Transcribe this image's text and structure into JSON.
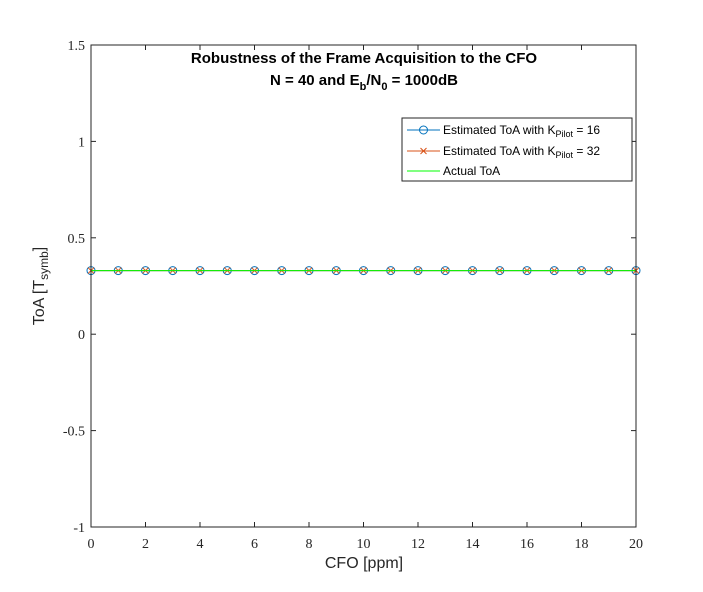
{
  "chart_data": {
    "type": "line",
    "title_line1": "Robustness of the Frame Acquisition to the CFO",
    "title_line2": {
      "prefix": "N = 40 and E",
      "sub1": "b",
      "mid": "/N",
      "sub2": "0",
      "suffix": " = 1000dB"
    },
    "xlabel": "CFO [ppm]",
    "ylabel": {
      "prefix": "ToA [T",
      "sub": "symb",
      "suffix": "]"
    },
    "xlim": [
      0,
      20
    ],
    "ylim": [
      -1,
      1.5
    ],
    "xticks": [
      0,
      2,
      4,
      6,
      8,
      10,
      12,
      14,
      16,
      18,
      20
    ],
    "xtick_labels": [
      "0",
      "2",
      "4",
      "6",
      "8",
      "10",
      "12",
      "14",
      "16",
      "18",
      "20"
    ],
    "yticks": [
      -1,
      -0.5,
      0,
      0.5,
      1,
      1.5
    ],
    "ytick_labels": [
      "-1",
      "-0.5",
      "0",
      "0.5",
      "1",
      "1.5"
    ],
    "grid": false,
    "legend_position": "top-right",
    "x": [
      0,
      1,
      2,
      3,
      4,
      5,
      6,
      7,
      8,
      9,
      10,
      11,
      12,
      13,
      14,
      15,
      16,
      17,
      18,
      19,
      20
    ],
    "series": [
      {
        "name": {
          "prefix": "Estimated ToA with K",
          "sub": "Pilot",
          "suffix": " = 16"
        },
        "color": "#0072BD",
        "marker": "circle",
        "values": [
          0.33,
          0.33,
          0.33,
          0.33,
          0.33,
          0.33,
          0.33,
          0.33,
          0.33,
          0.33,
          0.33,
          0.33,
          0.33,
          0.33,
          0.33,
          0.33,
          0.33,
          0.33,
          0.33,
          0.33,
          0.33
        ]
      },
      {
        "name": {
          "prefix": "Estimated ToA with K",
          "sub": "Pilot",
          "suffix": " = 32"
        },
        "color": "#D95319",
        "marker": "x",
        "values": [
          0.33,
          0.33,
          0.33,
          0.33,
          0.33,
          0.33,
          0.33,
          0.33,
          0.33,
          0.33,
          0.33,
          0.33,
          0.33,
          0.33,
          0.33,
          0.33,
          0.33,
          0.33,
          0.33,
          0.33,
          0.33
        ]
      },
      {
        "name": {
          "prefix": "Actual ToA",
          "sub": "",
          "suffix": ""
        },
        "color": "#00FF00",
        "marker": "none",
        "values": [
          0.33,
          0.33,
          0.33,
          0.33,
          0.33,
          0.33,
          0.33,
          0.33,
          0.33,
          0.33,
          0.33,
          0.33,
          0.33,
          0.33,
          0.33,
          0.33,
          0.33,
          0.33,
          0.33,
          0.33,
          0.33
        ]
      }
    ]
  }
}
